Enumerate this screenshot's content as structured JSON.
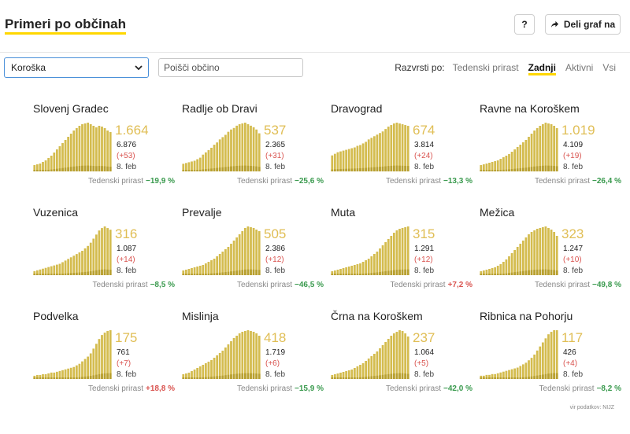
{
  "header": {
    "title": "Primeri po občinah",
    "help_label": "?",
    "share_label": "Deli graf na"
  },
  "filter": {
    "region": "Koroška",
    "search_placeholder": "Poišči občino"
  },
  "sort": {
    "label": "Razvrsti po:",
    "options": [
      "Tedenski prirast",
      "Zadnji",
      "Aktivni",
      "Vsi"
    ],
    "active": "Zadnji"
  },
  "colors": {
    "accent": "#ffd700",
    "bar": "#d4bc4f",
    "bar_dark": "#b8a030",
    "increase": "#d9534f",
    "decrease": "#3a9a4e"
  },
  "weekly_label": "Tedenski prirast",
  "municipalities": [
    {
      "name": "Slovenj Gradec",
      "active": "1.664",
      "total": "6.876",
      "delta": "(+53)",
      "date": "8. feb",
      "weekly": "−19,9 %",
      "trend": "down",
      "series": [
        8,
        9,
        10,
        12,
        14,
        17,
        20,
        24,
        28,
        32,
        36,
        40,
        44,
        48,
        52,
        55,
        58,
        60,
        61,
        62,
        60,
        58,
        56,
        58,
        57,
        55,
        52,
        50
      ]
    },
    {
      "name": "Radlje ob Dravi",
      "active": "537",
      "total": "2.365",
      "delta": "(+31)",
      "date": "8. feb",
      "weekly": "−25,6 %",
      "trend": "down",
      "series": [
        10,
        11,
        12,
        13,
        14,
        16,
        18,
        22,
        25,
        28,
        31,
        35,
        38,
        42,
        45,
        48,
        52,
        55,
        57,
        60,
        62,
        63,
        64,
        62,
        60,
        58,
        55,
        50
      ]
    },
    {
      "name": "Dravograd",
      "active": "674",
      "total": "3.814",
      "delta": "(+24)",
      "date": "8. feb",
      "weekly": "−13,3 %",
      "trend": "down",
      "series": [
        20,
        22,
        24,
        25,
        26,
        27,
        28,
        29,
        30,
        32,
        33,
        35,
        37,
        40,
        42,
        44,
        46,
        48,
        50,
        53,
        56,
        58,
        60,
        61,
        60,
        59,
        58,
        57
      ]
    },
    {
      "name": "Ravne na Koroškem",
      "active": "1.019",
      "total": "4.109",
      "delta": "(+19)",
      "date": "8. feb",
      "weekly": "−26,4 %",
      "trend": "down",
      "series": [
        8,
        9,
        10,
        11,
        12,
        13,
        14,
        16,
        18,
        20,
        22,
        25,
        28,
        31,
        34,
        37,
        40,
        44,
        48,
        52,
        55,
        58,
        60,
        62,
        61,
        60,
        58,
        55
      ]
    },
    {
      "name": "Vuzenica",
      "active": "316",
      "total": "1.087",
      "delta": "(+14)",
      "date": "8. feb",
      "weekly": "−8,5 %",
      "trend": "down",
      "series": [
        5,
        6,
        7,
        8,
        9,
        10,
        11,
        12,
        13,
        14,
        16,
        18,
        20,
        22,
        24,
        26,
        28,
        30,
        33,
        36,
        40,
        45,
        50,
        55,
        58,
        60,
        58,
        56
      ]
    },
    {
      "name": "Prevalje",
      "active": "505",
      "total": "2.386",
      "delta": "(+12)",
      "date": "8. feb",
      "weekly": "−46,5 %",
      "trend": "down",
      "series": [
        6,
        7,
        8,
        9,
        10,
        11,
        12,
        13,
        15,
        17,
        19,
        21,
        24,
        27,
        30,
        33,
        36,
        40,
        44,
        48,
        52,
        56,
        60,
        62,
        61,
        60,
        58,
        56
      ]
    },
    {
      "name": "Muta",
      "active": "315",
      "total": "1.291",
      "delta": "(+12)",
      "date": "8. feb",
      "weekly": "+7,2 %",
      "trend": "up",
      "series": [
        5,
        6,
        7,
        8,
        9,
        10,
        11,
        12,
        13,
        14,
        15,
        17,
        19,
        21,
        24,
        27,
        30,
        34,
        38,
        42,
        46,
        50,
        54,
        57,
        59,
        60,
        61,
        62
      ]
    },
    {
      "name": "Mežica",
      "active": "323",
      "total": "1.247",
      "delta": "(+10)",
      "date": "8. feb",
      "weekly": "−49,8 %",
      "trend": "down",
      "series": [
        5,
        6,
        7,
        8,
        9,
        10,
        12,
        14,
        17,
        20,
        24,
        28,
        32,
        36,
        40,
        44,
        48,
        52,
        55,
        57,
        59,
        60,
        61,
        62,
        60,
        58,
        55,
        50
      ]
    },
    {
      "name": "Podvelka",
      "active": "175",
      "total": "761",
      "delta": "(+7)",
      "date": "8. feb",
      "weekly": "+18,8 %",
      "trend": "up",
      "series": [
        4,
        5,
        5,
        6,
        6,
        7,
        8,
        8,
        9,
        10,
        11,
        12,
        13,
        14,
        15,
        17,
        19,
        22,
        25,
        28,
        32,
        38,
        44,
        50,
        55,
        58,
        60,
        61
      ]
    },
    {
      "name": "Mislinja",
      "active": "418",
      "total": "1.719",
      "delta": "(+6)",
      "date": "8. feb",
      "weekly": "−15,9 %",
      "trend": "down",
      "series": [
        6,
        7,
        8,
        10,
        12,
        14,
        16,
        18,
        20,
        22,
        24,
        27,
        30,
        33,
        36,
        40,
        44,
        48,
        52,
        55,
        58,
        60,
        61,
        62,
        61,
        60,
        58,
        55
      ]
    },
    {
      "name": "Črna na Koroškem",
      "active": "237",
      "total": "1.064",
      "delta": "(+5)",
      "date": "8. feb",
      "weekly": "−42,0 %",
      "trend": "down",
      "series": [
        5,
        6,
        7,
        8,
        9,
        10,
        11,
        12,
        14,
        16,
        18,
        20,
        23,
        26,
        29,
        32,
        35,
        39,
        43,
        47,
        51,
        55,
        58,
        60,
        62,
        61,
        58,
        54
      ]
    },
    {
      "name": "Ribnica na Pohorju",
      "active": "117",
      "total": "426",
      "delta": "(+4)",
      "date": "8. feb",
      "weekly": "−8,2 %",
      "trend": "down",
      "series": [
        4,
        4,
        5,
        5,
        6,
        6,
        7,
        8,
        9,
        10,
        11,
        12,
        13,
        14,
        16,
        18,
        20,
        23,
        26,
        30,
        35,
        40,
        45,
        50,
        55,
        58,
        60,
        60
      ]
    }
  ],
  "source": "vir podatkov: NIJZ"
}
